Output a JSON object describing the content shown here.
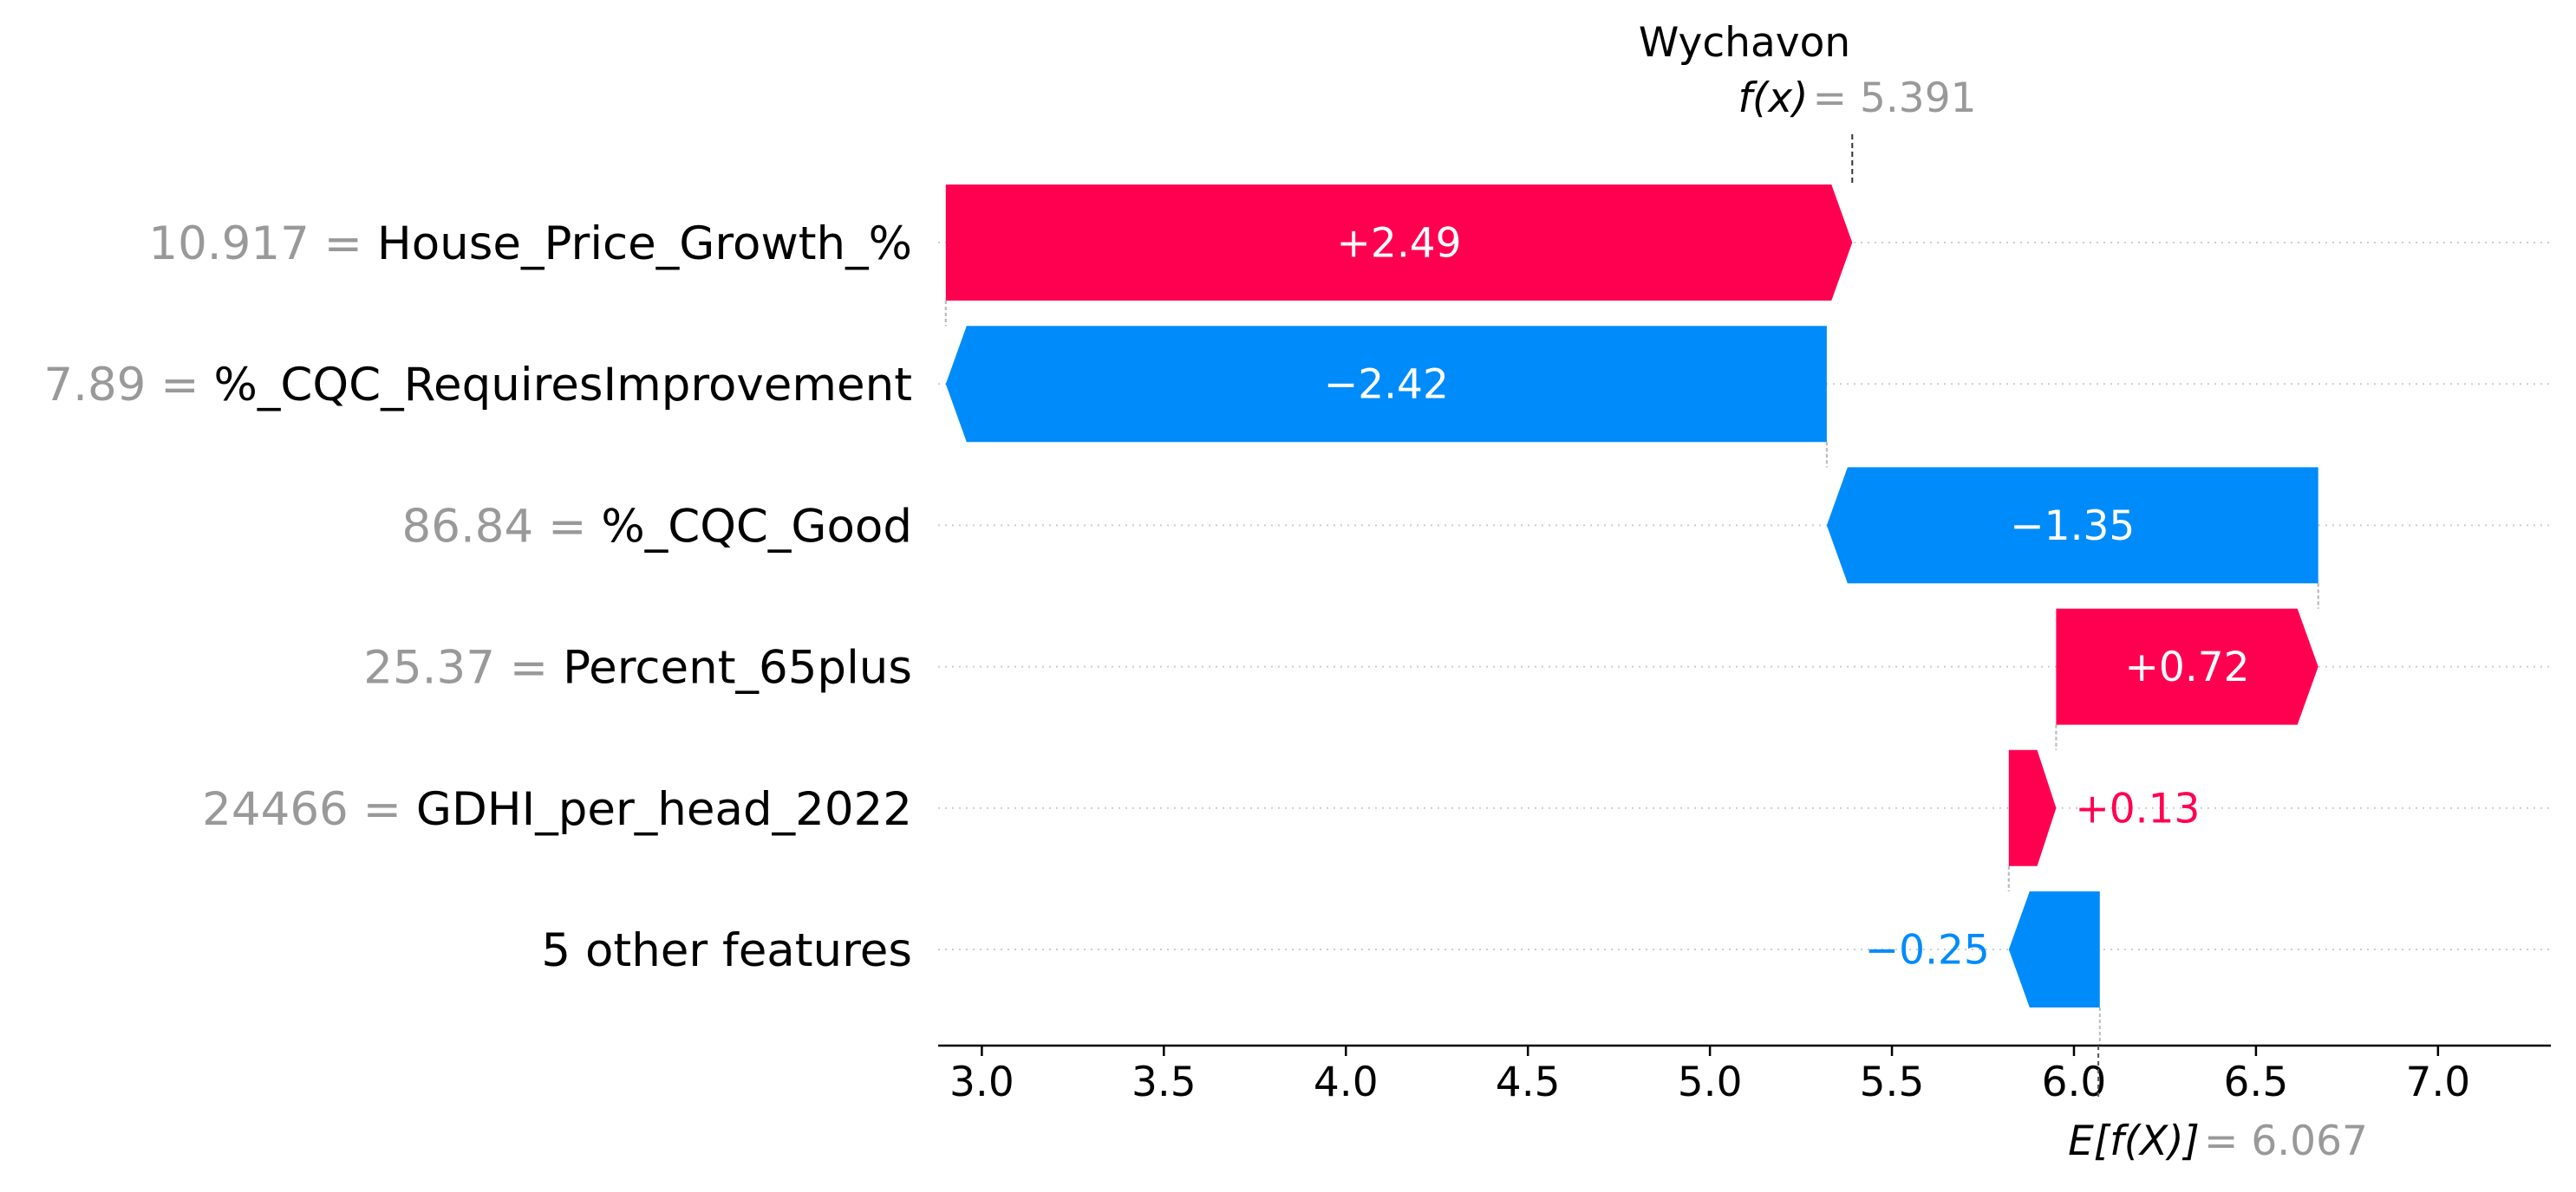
{
  "chart_data": {
    "type": "waterfall",
    "title": "Wychavon",
    "fx": {
      "label": "f(x)",
      "value": "5.391",
      "numeric": 5.391
    },
    "expected": {
      "label": "E[f(X)]",
      "value": "6.067",
      "numeric": 6.067
    },
    "features": [
      {
        "feature_value": "10.917",
        "feature_name": "House_Price_Growth_%",
        "contribution": 2.49,
        "label": "+2.49",
        "sign": "positive"
      },
      {
        "feature_value": "7.89",
        "feature_name": "%_CQC_RequiresImprovement",
        "contribution": -2.42,
        "label": "−2.42",
        "sign": "negative"
      },
      {
        "feature_value": "86.84",
        "feature_name": "%_CQC_Good",
        "contribution": -1.35,
        "label": "−1.35",
        "sign": "negative"
      },
      {
        "feature_value": "25.37",
        "feature_name": "Percent_65plus",
        "contribution": 0.72,
        "label": "+0.72",
        "sign": "positive"
      },
      {
        "feature_value": "24466",
        "feature_name": "GDHI_per_head_2022",
        "contribution": 0.13,
        "label": "+0.13",
        "sign": "positive"
      },
      {
        "feature_value": "",
        "feature_name": "5 other features",
        "contribution": -0.25,
        "label": "−0.25",
        "sign": "negative"
      }
    ],
    "x_ticks": [
      "3.0",
      "3.5",
      "4.0",
      "4.5",
      "5.0",
      "5.5",
      "6.0",
      "6.5",
      "7.0"
    ],
    "x_range": [
      2.88,
      7.31
    ],
    "colors": {
      "positive": "#ff0051",
      "negative": "#008bfb",
      "value_grey": "#999999"
    }
  }
}
